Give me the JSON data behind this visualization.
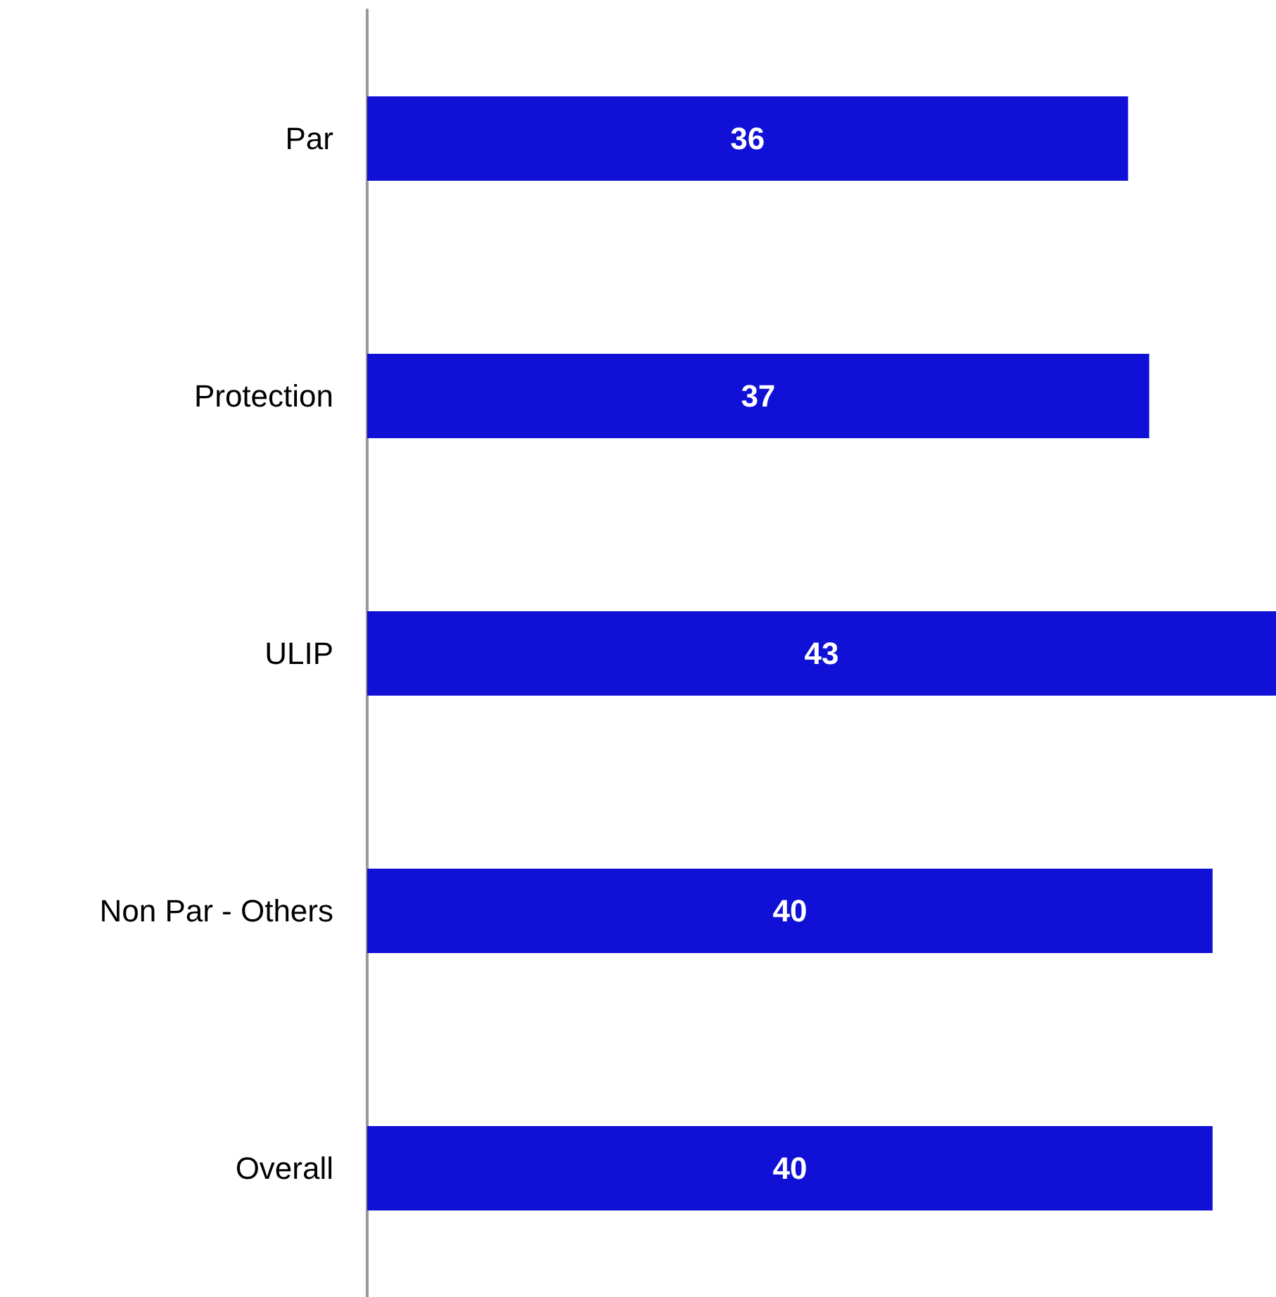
{
  "chart_data": {
    "type": "bar",
    "orientation": "horizontal",
    "categories": [
      "Par",
      "Protection",
      "ULIP",
      "Non Par - Others",
      "Overall"
    ],
    "values": [
      36,
      37,
      43,
      40,
      40
    ],
    "color": "#1010d6",
    "data_labels": true
  }
}
